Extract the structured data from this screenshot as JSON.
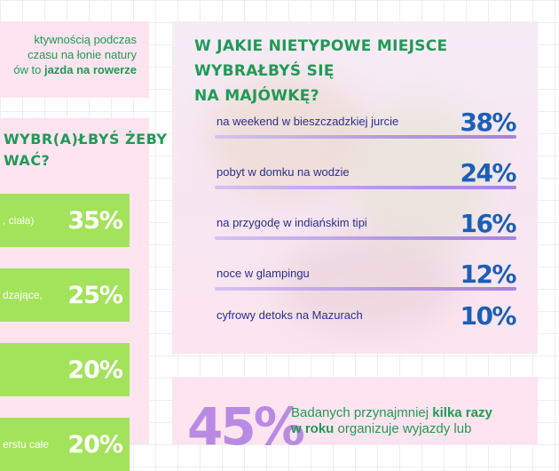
{
  "left_top": {
    "line1": "ktywnością podczas",
    "line2": "czasu na łonie natury",
    "line3_prefix": "ów to ",
    "line3_bold": "jazda na rowerze"
  },
  "left_question": {
    "line1": "WYBR(A)ŁBYŚ ŻEBY",
    "line2": "WAĆ?"
  },
  "left_bars": [
    {
      "text": ", ciała)",
      "pct": "35%"
    },
    {
      "text": "dzające,",
      "pct": "25%"
    },
    {
      "text": "",
      "pct": "20%"
    },
    {
      "text": "erstu całe",
      "pct": "20%"
    }
  ],
  "main": {
    "title_line1": "W JAKIE NIETYPOWE MIEJSCE WYBRAŁBYŚ SIĘ",
    "title_line2": "NA MAJÓWKĘ?",
    "rows": [
      {
        "label": "na weekend w bieszczadzkiej jurcie",
        "pct": "38%"
      },
      {
        "label": "pobyt w domku na wodzie",
        "pct": "24%"
      },
      {
        "label": "na przygodę w indiańskim tipi",
        "pct": "16%"
      },
      {
        "label": "noce w glampingu",
        "pct": "12%"
      },
      {
        "label": "cyfrowy detoks na Mazurach",
        "pct": "10%"
      }
    ]
  },
  "bottom": {
    "big_pct": "45%",
    "text_1": "Badanych przynajmniej ",
    "text_bold": "kilka razy",
    "text_bold2": "w roku",
    "text_2": " organizuje wyjazdy lub"
  },
  "colors": {
    "green_text": "#1f9a57",
    "green_bar": "#a3e35b",
    "blue_pct": "#1b5fb8",
    "navy_label": "#2a2f8f",
    "purple": "#b98ae3",
    "pink_card": "#fde4ef"
  }
}
